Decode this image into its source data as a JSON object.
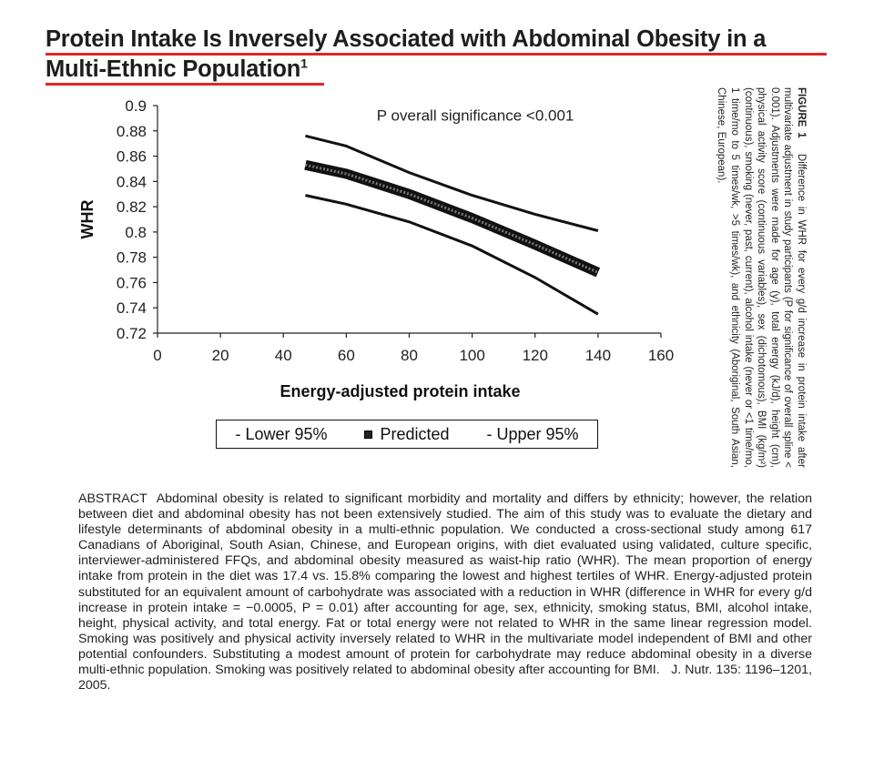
{
  "title": {
    "line1": "Protein Intake Is Inversely Associated with Abdominal Obesity in a",
    "line2": "Multi-Ethnic Population",
    "footnote": "1"
  },
  "chart_data": {
    "type": "line",
    "xlabel": "Energy-adjusted protein intake",
    "ylabel": "WHR",
    "xlim": [
      0,
      160
    ],
    "ylim": [
      0.72,
      0.9
    ],
    "x_ticks": [
      "0",
      "20",
      "40",
      "60",
      "80",
      "100",
      "120",
      "140",
      "160"
    ],
    "y_ticks": [
      "0.72",
      "0.74",
      "0.76",
      "0.78",
      "0.8",
      "0.82",
      "0.84",
      "0.86",
      "0.88",
      "0.9"
    ],
    "annotation": "P overall significance <0.001",
    "grid": false,
    "legend_position": "bottom",
    "x": [
      47,
      60,
      80,
      100,
      120,
      140
    ],
    "series": [
      {
        "name": "Lower 95%",
        "values": [
          0.829,
          0.822,
          0.808,
          0.789,
          0.764,
          0.735
        ]
      },
      {
        "name": "Predicted",
        "values": [
          0.853,
          0.846,
          0.83,
          0.811,
          0.79,
          0.768
        ]
      },
      {
        "name": "Upper 95%",
        "values": [
          0.876,
          0.868,
          0.847,
          0.829,
          0.814,
          0.801
        ]
      }
    ]
  },
  "legend": {
    "lower": "- Lower 95%",
    "predicted": "Predicted",
    "upper": "- Upper 95%"
  },
  "figure_caption": {
    "label": "FIGURE 1",
    "text": "Difference in WHR for every g/d increase in protein intake after multivariate adjustment in study participants (P for significance of overall spline < 0.001). Adjustments were made for age (y), total energy (kJ/d), height (cm), physical activity score (continuous variables), sex (dichotomous), BMI (kg/m²) (continuous), smoking (never, past, current), alcohol intake (never or <1 time/mo, 1 time/mo to 5 times/wk, >5 times/wk), and ethnicity (Aboriginal, South Asian, Chinese, European)."
  },
  "abstract": {
    "label": "ABSTRACT",
    "text": "Abdominal obesity is related to significant morbidity and mortality and differs by ethnicity; however, the relation between diet and abdominal obesity has not been extensively studied. The aim of this study was to evaluate the dietary and lifestyle determinants of abdominal obesity in a multi-ethnic population. We conducted a cross-sectional study among 617 Canadians of Aboriginal, South Asian, Chinese, and European origins, with diet evaluated using validated, culture specific, interviewer-administered FFQs, and abdominal obesity measured as waist-hip ratio (WHR). The mean proportion of energy intake from protein in the diet was 17.4 vs. 15.8% comparing the lowest and highest tertiles of WHR. Energy-adjusted protein substituted for an equivalent amount of carbohydrate was associated with a reduction in WHR (difference in WHR for every g/d increase in protein intake = −0.0005, P = 0.01) after accounting for age, sex, ethnicity, smoking status, BMI, alcohol intake, height, physical activity, and total energy. Fat or total energy were not related to WHR in the same linear regression model. Smoking was positively and physical activity inversely related to WHR in the multivariate model independent of BMI and other potential confounders. Substituting a modest amount of protein for carbohydrate may reduce abdominal obesity in a diverse multi-ethnic population. Smoking was positively related to abdominal obesity after accounting for BMI.",
    "citation": "J. Nutr. 135: 1196–1201, 2005."
  }
}
